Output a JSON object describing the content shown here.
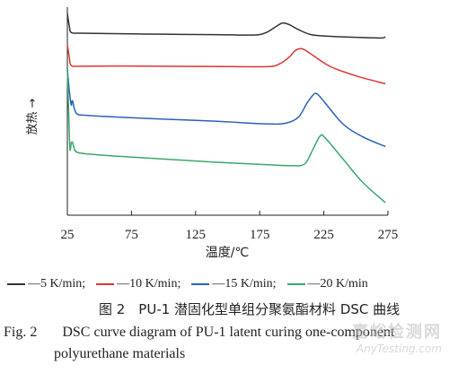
{
  "chart_data": {
    "type": "line",
    "title": "",
    "xlabel": "温度/℃",
    "ylabel": "放热 →",
    "xlim": [
      25,
      275
    ],
    "xticks": [
      25,
      75,
      125,
      175,
      225,
      275
    ],
    "y_ticks_shown": false,
    "grid": false,
    "legend_position": "bottom",
    "series": [
      {
        "name": "5 K/min",
        "color": "#333333",
        "x": [
          25,
          26.5,
          28,
          35,
          60,
          100,
          140,
          170,
          180,
          188,
          193,
          198,
          205,
          215,
          230,
          250,
          270,
          273
        ],
        "y": [
          97,
          91,
          87.8,
          87.5,
          87.3,
          87.0,
          86.8,
          86.6,
          87.8,
          90.8,
          92.4,
          91.6,
          89.3,
          86.8,
          86.0,
          85.5,
          85.2,
          85.8
        ]
      },
      {
        "name": "10 K/min",
        "color": "#e03333",
        "x": [
          25,
          26.5,
          28,
          35,
          60,
          100,
          140,
          180,
          190,
          198,
          203,
          208,
          215,
          230,
          250,
          273
        ],
        "y": [
          82,
          76,
          72.0,
          71.6,
          71.7,
          71.6,
          71.5,
          71.4,
          72.6,
          76.0,
          79.3,
          80.0,
          77.5,
          71.5,
          67.0,
          63.2
        ]
      },
      {
        "name": "15 K/min",
        "color": "#2a62b8",
        "x": [
          25,
          26.5,
          28,
          29,
          32,
          40,
          60,
          100,
          140,
          180,
          195,
          205,
          212,
          217,
          220,
          226,
          240,
          255,
          273
        ],
        "y": [
          70,
          60,
          53.0,
          55.0,
          49.0,
          48.0,
          47.3,
          46.2,
          45.2,
          43.9,
          44.2,
          47.0,
          54.0,
          58.0,
          58.2,
          54.0,
          43.8,
          37.8,
          33.0
        ]
      },
      {
        "name": "20 K/min",
        "color": "#3aa86a",
        "x": [
          25,
          26,
          27,
          28,
          29,
          31,
          34,
          40,
          60,
          100,
          140,
          180,
          200,
          210,
          216,
          222,
          226,
          240,
          255,
          273
        ],
        "y": [
          70,
          50,
          32.0,
          34.5,
          35.0,
          31.0,
          30.0,
          29.5,
          28.5,
          27.0,
          25.5,
          24.3,
          23.8,
          24.6,
          31.0,
          38.0,
          37.2,
          27.0,
          16.0,
          6.0
        ]
      }
    ]
  },
  "legend_items": [
    {
      "label": "—5 K/min;",
      "color": "#333333"
    },
    {
      "label": "—10 K/min;",
      "color": "#e03333"
    },
    {
      "label": "—15 K/min;",
      "color": "#2a62b8"
    },
    {
      "label": "—20 K/min",
      "color": "#3aa86a"
    }
  ],
  "caption": {
    "cn": "图 2　PU-1 潜固化型单组分聚氨酯材料 DSC 曲线",
    "en_fig": "Fig. 2",
    "en_line1": "DSC curve diagram of PU-1 latent curing one-component",
    "en_line2": "polyurethane materials"
  },
  "watermark": {
    "cn": "嘉峪检测网",
    "en": "AnyTesting.com"
  }
}
